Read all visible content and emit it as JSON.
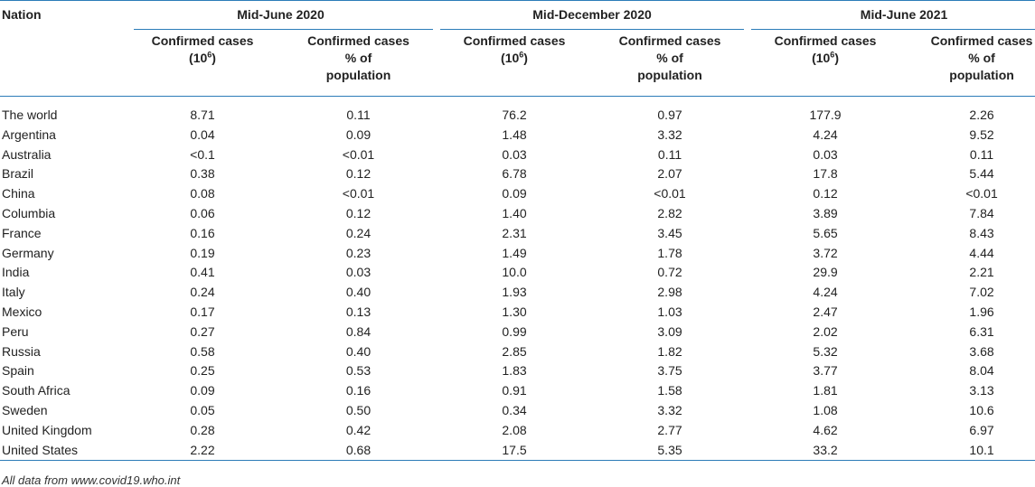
{
  "table": {
    "nation_header": "Nation",
    "groups": [
      "Mid-June 2020",
      "Mid-December 2020",
      "Mid-June 2021"
    ],
    "sub_header_cases_line1": "Confirmed cases",
    "sub_header_cases_line2_prefix": "(10",
    "sub_header_cases_exponent": "6",
    "sub_header_cases_line2_suffix": ")",
    "sub_header_pct_line1": "Confirmed cases",
    "sub_header_pct_line2": "% of",
    "sub_header_pct_line3": "population",
    "rows": [
      {
        "nation": "The world",
        "v": [
          "8.71",
          "0.11",
          "76.2",
          "0.97",
          "177.9",
          "2.26"
        ]
      },
      {
        "nation": "Argentina",
        "v": [
          "0.04",
          "0.09",
          "1.48",
          "3.32",
          "4.24",
          "9.52"
        ]
      },
      {
        "nation": "Australia",
        "v": [
          "<0.1",
          "<0.01",
          "0.03",
          "0.11",
          "0.03",
          "0.11"
        ]
      },
      {
        "nation": "Brazil",
        "v": [
          "0.38",
          "0.12",
          "6.78",
          "2.07",
          "17.8",
          "5.44"
        ]
      },
      {
        "nation": "China",
        "v": [
          "0.08",
          "<0.01",
          "0.09",
          "<0.01",
          "0.12",
          "<0.01"
        ]
      },
      {
        "nation": "Columbia",
        "v": [
          "0.06",
          "0.12",
          "1.40",
          "2.82",
          "3.89",
          "7.84"
        ]
      },
      {
        "nation": "France",
        "v": [
          "0.16",
          "0.24",
          "2.31",
          "3.45",
          "5.65",
          "8.43"
        ]
      },
      {
        "nation": "Germany",
        "v": [
          "0.19",
          "0.23",
          "1.49",
          "1.78",
          "3.72",
          "4.44"
        ]
      },
      {
        "nation": "India",
        "v": [
          "0.41",
          "0.03",
          "10.0",
          "0.72",
          "29.9",
          "2.21"
        ]
      },
      {
        "nation": "Italy",
        "v": [
          "0.24",
          "0.40",
          "1.93",
          "2.98",
          "4.24",
          "7.02"
        ]
      },
      {
        "nation": "Mexico",
        "v": [
          "0.17",
          "0.13",
          "1.30",
          "1.03",
          "2.47",
          "1.96"
        ]
      },
      {
        "nation": "Peru",
        "v": [
          "0.27",
          "0.84",
          "0.99",
          "3.09",
          "2.02",
          "6.31"
        ]
      },
      {
        "nation": "Russia",
        "v": [
          "0.58",
          "0.40",
          "2.85",
          "1.82",
          "5.32",
          "3.68"
        ]
      },
      {
        "nation": "Spain",
        "v": [
          "0.25",
          "0.53",
          "1.83",
          "3.75",
          "3.77",
          "8.04"
        ]
      },
      {
        "nation": "South Africa",
        "v": [
          "0.09",
          "0.16",
          "0.91",
          "1.58",
          "1.81",
          "3.13"
        ]
      },
      {
        "nation": "Sweden",
        "v": [
          "0.05",
          "0.50",
          "0.34",
          "3.32",
          "1.08",
          "10.6"
        ]
      },
      {
        "nation": "United Kingdom",
        "v": [
          "0.28",
          "0.42",
          "2.08",
          "2.77",
          "4.62",
          "6.97"
        ]
      },
      {
        "nation": "United States",
        "v": [
          "2.22",
          "0.68",
          "17.5",
          "5.35",
          "33.2",
          "10.1"
        ]
      }
    ]
  },
  "footnote": "All data from www.covid19.who.int",
  "colors": {
    "rule": "#2c7cb8",
    "text": "#222222"
  }
}
